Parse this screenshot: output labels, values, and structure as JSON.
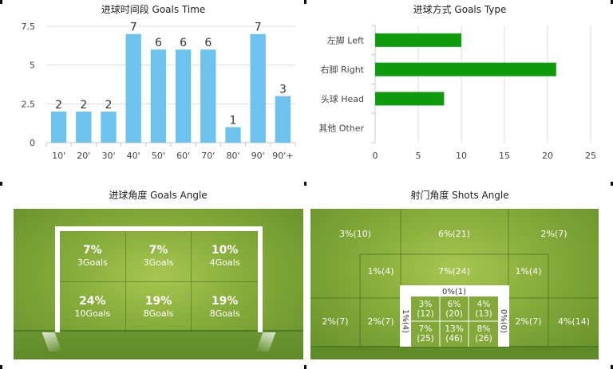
{
  "chart_data": [
    {
      "type": "bar",
      "title": "进球时间段 Goals Time",
      "categories": [
        "10'",
        "20'",
        "30'",
        "40'",
        "50'",
        "60'",
        "70'",
        "80'",
        "90'",
        "90'+"
      ],
      "values": [
        2,
        2,
        2,
        7,
        6,
        6,
        6,
        1,
        7,
        3
      ],
      "ylim": [
        0,
        7.5
      ],
      "yticks": [
        "0",
        "2.5",
        "5",
        "7.5"
      ],
      "color": "#6ec3ee",
      "grid": true
    },
    {
      "type": "bar",
      "orientation": "horizontal",
      "title": "进球方式 Goals Type",
      "categories": [
        "左脚 Left",
        "右脚 Right",
        "头球 Head",
        "其他 Other"
      ],
      "values": [
        10,
        21,
        8,
        0
      ],
      "xlim": [
        0,
        25
      ],
      "xticks": [
        "0",
        "5",
        "10",
        "15",
        "20",
        "25"
      ],
      "color": "#109a0e",
      "grid": true
    },
    {
      "type": "table",
      "title": "进球角度 Goals Angle",
      "rows": [
        [
          {
            "pct": "7%",
            "goals": "3Goals"
          },
          {
            "pct": "7%",
            "goals": "3Goals"
          },
          {
            "pct": "10%",
            "goals": "4Goals"
          }
        ],
        [
          {
            "pct": "24%",
            "goals": "10Goals"
          },
          {
            "pct": "19%",
            "goals": "8Goals"
          },
          {
            "pct": "19%",
            "goals": "8Goals"
          }
        ]
      ]
    },
    {
      "type": "table",
      "title": "射门角度 Shots Angle",
      "zones": {
        "top_left": "3%(10)",
        "top_center": "6%(21)",
        "top_right": "2%(7)",
        "mid_left": "1%(4)",
        "mid_center": "7%(24)",
        "mid_right": "1%(4)",
        "low_far_left": "2%(7)",
        "low_left": "2%(7)",
        "low_right": "2%(7)",
        "low_far_right": "4%(14)",
        "goal_top": "0%(1)",
        "goal_left_post": "1%(4)",
        "goal_right_post": "0%(0)",
        "goal_cells": [
          [
            "3%\n(12)",
            "6%\n(20)",
            "4%\n(13)"
          ],
          [
            "7%\n(25)",
            "13%\n(46)",
            "8%\n(26)"
          ]
        ]
      }
    }
  ]
}
